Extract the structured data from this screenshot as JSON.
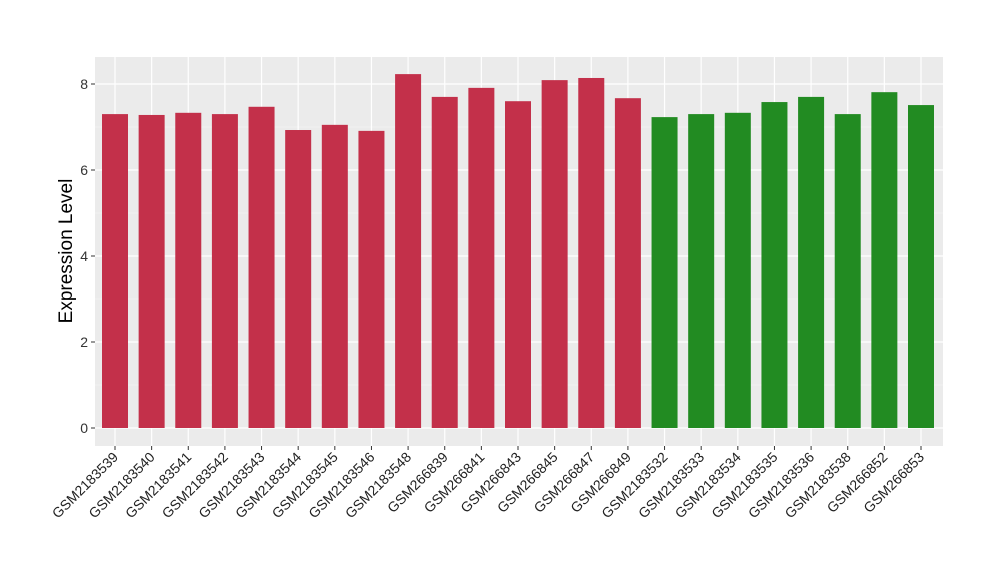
{
  "chart_data": {
    "type": "bar",
    "title": "",
    "xlabel": "",
    "ylabel": "Expression Level",
    "ylim": [
      0,
      8.6
    ],
    "yticks": [
      0,
      2,
      4,
      6,
      8
    ],
    "grid": true,
    "categories": [
      "GSM2183539",
      "GSM2183540",
      "GSM2183541",
      "GSM2183542",
      "GSM2183543",
      "GSM2183544",
      "GSM2183545",
      "GSM2183546",
      "GSM2183548",
      "GSM266839",
      "GSM266841",
      "GSM266843",
      "GSM266845",
      "GSM266847",
      "GSM266849",
      "GSM2183532",
      "GSM2183533",
      "GSM2183534",
      "GSM2183535",
      "GSM2183536",
      "GSM2183538",
      "GSM266852",
      "GSM266853"
    ],
    "values": [
      7.3,
      7.28,
      7.33,
      7.3,
      7.47,
      6.93,
      7.05,
      6.91,
      8.23,
      7.7,
      7.91,
      7.6,
      8.09,
      8.14,
      7.67,
      7.23,
      7.3,
      7.33,
      7.58,
      7.7,
      7.3,
      7.81,
      7.51
    ],
    "groups": [
      "a",
      "a",
      "a",
      "a",
      "a",
      "a",
      "a",
      "a",
      "a",
      "a",
      "a",
      "a",
      "a",
      "a",
      "a",
      "b",
      "b",
      "b",
      "b",
      "b",
      "b",
      "b",
      "b"
    ],
    "group_colors": {
      "a": "#C3304A",
      "b": "#228B22"
    }
  }
}
